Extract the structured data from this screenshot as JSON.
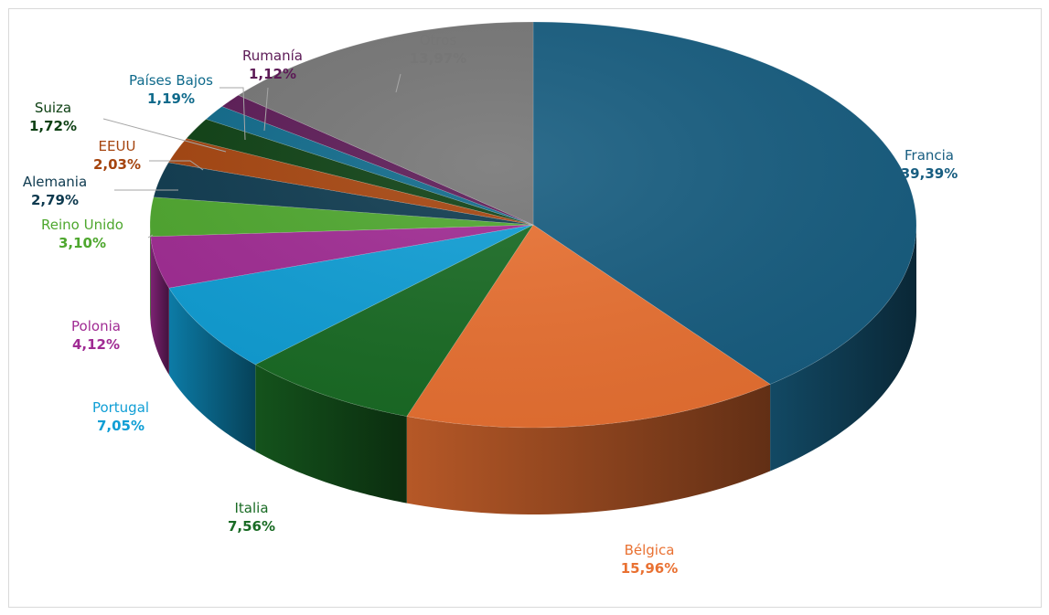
{
  "chart_data": {
    "type": "pie",
    "title": "",
    "series": [
      {
        "name": "",
        "slices": [
          {
            "label": "Francia",
            "value": 39.39,
            "display": "39,39%",
            "color": "#175D80"
          },
          {
            "label": "Bélgica",
            "value": 15.96,
            "display": "15,96%",
            "color": "#E97132"
          },
          {
            "label": "Italia",
            "value": 7.56,
            "display": "7,56%",
            "color": "#196B24"
          },
          {
            "label": "Portugal",
            "value": 7.05,
            "display": "7,05%",
            "color": "#0F9ED5"
          },
          {
            "label": "Polonia",
            "value": 4.12,
            "display": "4,12%",
            "color": "#A02B93"
          },
          {
            "label": "Reino Unido",
            "value": 3.1,
            "display": "3,10%",
            "color": "#4EA72E"
          },
          {
            "label": "Alemania",
            "value": 2.79,
            "display": "2,79%",
            "color": "#0E3A4F"
          },
          {
            "label": "EEUU",
            "value": 2.03,
            "display": "2,03%",
            "color": "#A5440E"
          },
          {
            "label": "Suiza",
            "value": 1.72,
            "display": "1,72%",
            "color": "#0D4013"
          },
          {
            "label": "Países Bajos",
            "value": 1.19,
            "display": "1,19%",
            "color": "#0F6A8B"
          },
          {
            "label": "Rumanía",
            "value": 1.12,
            "display": "1,12%",
            "color": "#5C1A56"
          },
          {
            "label": "Otros",
            "value": 13.97,
            "display": "13,97%",
            "color": "#767676"
          }
        ]
      }
    ],
    "style": "3d-pie",
    "legend": "none",
    "data_labels": "outside-with-leader-lines"
  }
}
